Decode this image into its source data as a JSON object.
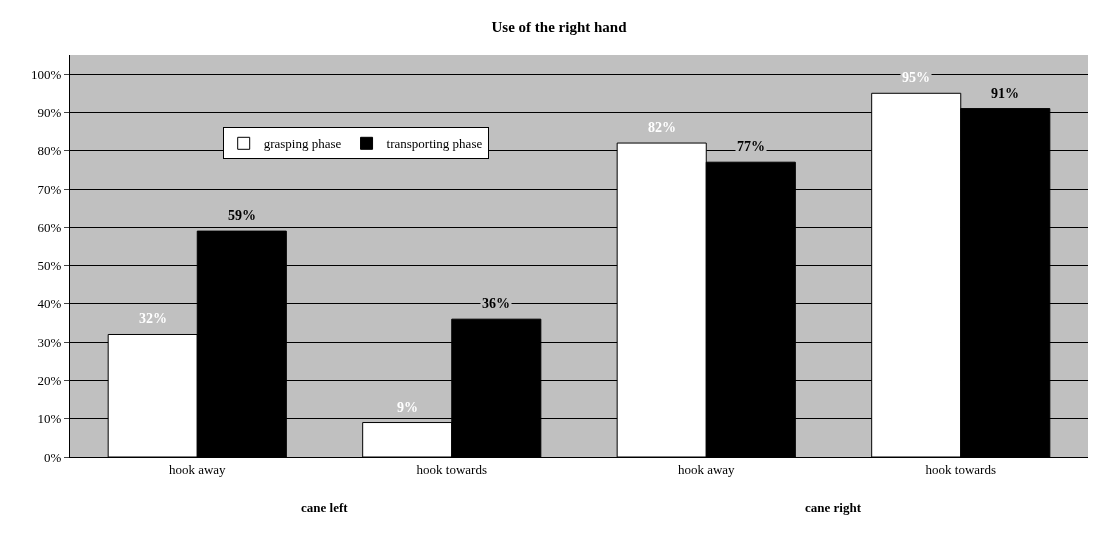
{
  "chart_data": {
    "type": "bar",
    "title": "Use of the right hand",
    "categories": [
      "hook away",
      "hook towards",
      "hook away",
      "hook towards"
    ],
    "series": [
      {
        "name": "grasping phase",
        "color": "#ffffff",
        "values": [
          32,
          9,
          82,
          95
        ],
        "value_labels": [
          "32%",
          "9%",
          "82%",
          "95%"
        ]
      },
      {
        "name": "transporting phase",
        "color": "#000000",
        "values": [
          59,
          36,
          77,
          91
        ],
        "value_labels": [
          "59%",
          "36%",
          "77%",
          "91%"
        ]
      }
    ],
    "ylim": [
      0,
      105
    ],
    "yticks": [
      {
        "value": 0,
        "label": "0%"
      },
      {
        "value": 10,
        "label": "10%"
      },
      {
        "value": 20,
        "label": "20%"
      },
      {
        "value": 30,
        "label": "30%"
      },
      {
        "value": 40,
        "label": "40%"
      },
      {
        "value": 50,
        "label": "50%"
      },
      {
        "value": 60,
        "label": "60%"
      },
      {
        "value": 70,
        "label": "70%"
      },
      {
        "value": 80,
        "label": "80%"
      },
      {
        "value": 90,
        "label": "90%"
      },
      {
        "value": 100,
        "label": "100%"
      }
    ],
    "grid": "y",
    "legend": "top left",
    "annotations": [
      "cane left",
      "cane right"
    ]
  }
}
